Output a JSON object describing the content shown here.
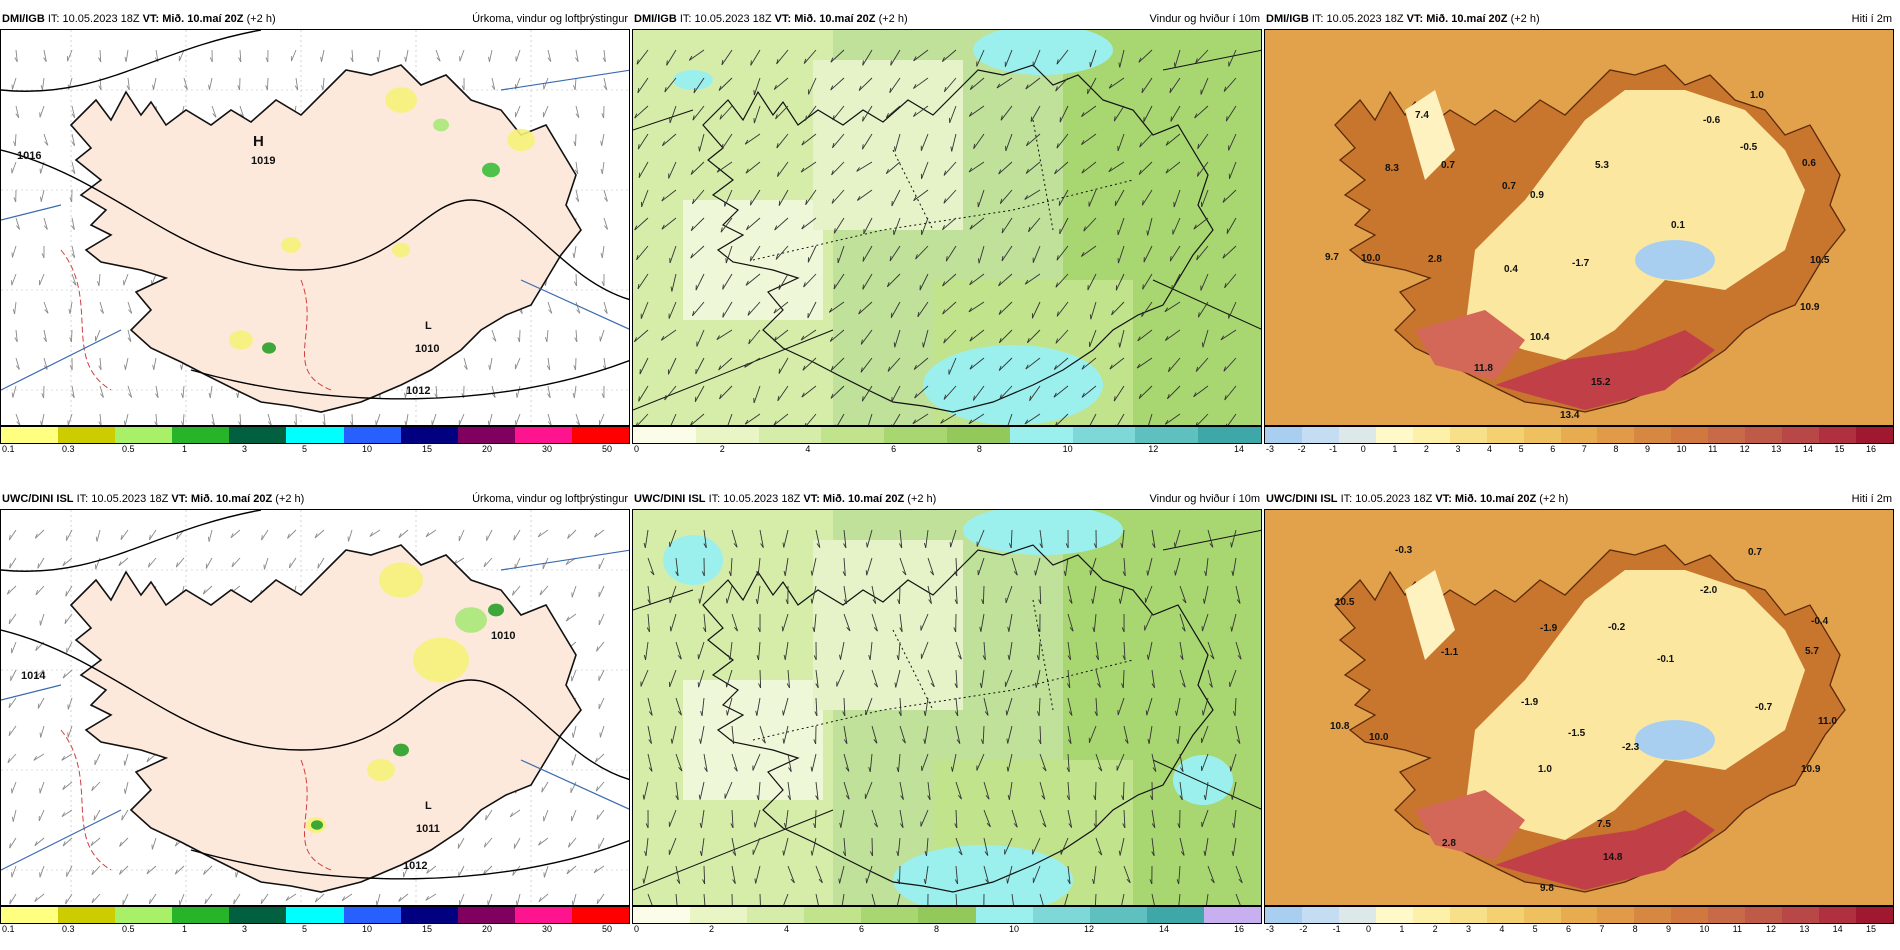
{
  "panels": [
    {
      "source": "DMI/IGB",
      "it": "IT: 10.05.2023 18Z",
      "vt_label": "VT:",
      "vt_value": "Mið. 10.maí 20Z",
      "lead": "(+2 h)",
      "title": "Úrkoma, vindur og loftþrýstingur",
      "type": "precip",
      "pressure_labels": [
        {
          "text": "H"
        },
        {
          "text": "1019"
        },
        {
          "text": "L"
        },
        {
          "text": "1010"
        },
        {
          "text": "1012"
        },
        {
          "text": "1016"
        }
      ],
      "colorbar": {
        "colors": [
          "#ffff80",
          "#cccc00",
          "#a8f068",
          "#28b428",
          "#006040",
          "#00ffff",
          "#2860ff",
          "#000080",
          "#800060",
          "#ff1490",
          "#ff0000"
        ],
        "ticks": [
          "0.1",
          "0.3",
          "0.5",
          "1",
          "3",
          "5",
          "10",
          "15",
          "20",
          "30",
          "50"
        ]
      }
    },
    {
      "source": "DMI/IGB",
      "it": "IT: 10.05.2023 18Z",
      "vt_label": "VT:",
      "vt_value": "Mið. 10.maí 20Z",
      "lead": "(+2 h)",
      "title": "Vindur og hviður í 10m",
      "type": "wind",
      "colorbar": {
        "colors": [
          "#fbfde9",
          "#eaf5c6",
          "#d6edaa",
          "#c0e38c",
          "#a8d670",
          "#93c95a",
          "#9bf0ee",
          "#7fd8d8",
          "#5fc0c0",
          "#3ea8a8"
        ],
        "ticks": [
          "0",
          "2",
          "4",
          "6",
          "8",
          "10",
          "12",
          "14"
        ]
      }
    },
    {
      "source": "DMI/IGB",
      "it": "IT: 10.05.2023 18Z",
      "vt_label": "VT:",
      "vt_value": "Mið. 10.maí 20Z",
      "lead": "(+2 h)",
      "title": "Hiti í 2m",
      "type": "temp",
      "values": [
        "7.4",
        "8.3",
        "0.7",
        "0.7",
        "0.9",
        "5.3",
        "1.0",
        "-0.6",
        "-0.5",
        "0.6",
        "0.1",
        "10.5",
        "9.7",
        "10.0",
        "2.8",
        "0.4",
        "-1.7",
        "10.9",
        "10.4",
        "11.8",
        "15.2",
        "13.4"
      ],
      "colorbar": {
        "colors": [
          "#a8cff0",
          "#c4ddf2",
          "#dce9e8",
          "#fff8c8",
          "#fdf0a8",
          "#f8e08a",
          "#f4d070",
          "#eec060",
          "#e8ac50",
          "#e09a48",
          "#d68842",
          "#d07840",
          "#c86a48",
          "#c05a48",
          "#b84848",
          "#b03040",
          "#a01830"
        ],
        "ticks": [
          "-3",
          "-2",
          "-1",
          "0",
          "1",
          "2",
          "3",
          "4",
          "5",
          "6",
          "7",
          "8",
          "9",
          "10",
          "11",
          "12",
          "13",
          "14",
          "15",
          "16"
        ]
      }
    },
    {
      "source": "UWC/DINI ISL",
      "it": "IT: 10.05.2023 18Z",
      "vt_label": "VT:",
      "vt_value": "Mið. 10.maí 20Z",
      "lead": "(+2 h)",
      "title": "Úrkoma, vindur og loftþrýstingur",
      "type": "precip",
      "pressure_labels": [
        {
          "text": "L"
        },
        {
          "text": "1011"
        },
        {
          "text": "1012"
        },
        {
          "text": "1014"
        },
        {
          "text": "1010"
        }
      ],
      "colorbar": {
        "colors": [
          "#ffff80",
          "#cccc00",
          "#a8f068",
          "#28b428",
          "#006040",
          "#00ffff",
          "#2860ff",
          "#000080",
          "#800060",
          "#ff1490",
          "#ff0000"
        ],
        "ticks": [
          "0.1",
          "0.3",
          "0.5",
          "1",
          "3",
          "5",
          "10",
          "15",
          "20",
          "30",
          "50"
        ]
      }
    },
    {
      "source": "UWC/DINI ISL",
      "it": "IT: 10.05.2023 18Z",
      "vt_label": "VT:",
      "vt_value": "Mið. 10.maí 20Z",
      "lead": "(+2 h)",
      "title": "Vindur og hviður í 10m",
      "type": "wind",
      "colorbar": {
        "colors": [
          "#fbfde9",
          "#eaf5c6",
          "#d6edaa",
          "#c0e38c",
          "#a8d670",
          "#93c95a",
          "#9bf0ee",
          "#7fd8d8",
          "#5fc0c0",
          "#3ea8a8",
          "#c8b0f0"
        ],
        "ticks": [
          "0",
          "2",
          "4",
          "6",
          "8",
          "10",
          "12",
          "14",
          "16"
        ]
      }
    },
    {
      "source": "UWC/DINI ISL",
      "it": "IT: 10.05.2023 18Z",
      "vt_label": "VT:",
      "vt_value": "Mið. 10.maí 20Z",
      "lead": "(+2 h)",
      "title": "Hiti í 2m",
      "type": "temp",
      "values": [
        "-0.3",
        "0.7",
        "10.5",
        "-2.0",
        "-0.4",
        "-1.9",
        "-0.2",
        "-1.1",
        "-0.1",
        "5.7",
        "-1.9",
        "-0.7",
        "11.0",
        "10.8",
        "10.0",
        "-1.5",
        "-2.3",
        "1.0",
        "10.9",
        "7.5",
        "2.8",
        "14.8",
        "9.8"
      ],
      "colorbar": {
        "colors": [
          "#a8cff0",
          "#c4ddf2",
          "#dce9e8",
          "#fff8c8",
          "#fdf0a8",
          "#f8e08a",
          "#f4d070",
          "#eec060",
          "#e8ac50",
          "#e09a48",
          "#d68842",
          "#d07840",
          "#c86a48",
          "#c05a48",
          "#b84848",
          "#b03040",
          "#a01830"
        ],
        "ticks": [
          "-3",
          "-2",
          "-1",
          "0",
          "1",
          "2",
          "3",
          "4",
          "5",
          "6",
          "7",
          "8",
          "9",
          "10",
          "11",
          "12",
          "13",
          "14",
          "15"
        ]
      }
    }
  ]
}
